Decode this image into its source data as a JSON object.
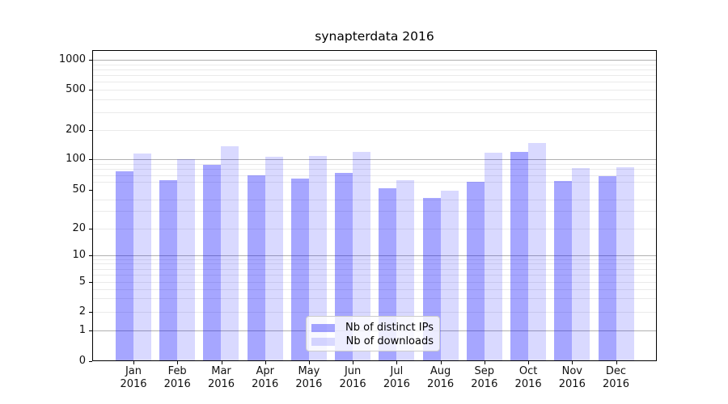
{
  "figure": {
    "background": "#ffffff",
    "plot_background": "#ffffff",
    "spine_color": "#000000",
    "major_grid_color": "#b0b0b0",
    "minor_grid_color": "#eaeaea"
  },
  "chart_data": {
    "type": "bar",
    "title": "synapterdata 2016",
    "categories": [
      "Jan 2016",
      "Feb 2016",
      "Mar 2016",
      "Apr 2016",
      "May 2016",
      "Jun 2016",
      "Jul 2016",
      "Aug 2016",
      "Sep 2016",
      "Oct 2016",
      "Nov 2016",
      "Dec 2016"
    ],
    "series": [
      {
        "name": "Nb of distinct IPs",
        "color_hex": "#a6a6ff",
        "color_rgba": "rgba(0,0,255,0.35)",
        "values": [
          76,
          62,
          88,
          70,
          65,
          74,
          52,
          41,
          60,
          120,
          61,
          68
        ]
      },
      {
        "name": "Nb of downloads",
        "color_hex": "#d9d9ff",
        "color_rgba": "rgba(0,0,255,0.15)",
        "values": [
          114,
          101,
          135,
          107,
          108,
          120,
          62,
          49,
          117,
          148,
          82,
          84
        ]
      }
    ],
    "xlabel": "",
    "ylabel": "",
    "yscale": "symlog",
    "y_tick_labels": [
      "0",
      "1",
      "2",
      "5",
      "10",
      "20",
      "50",
      "100",
      "200",
      "500",
      "1000"
    ],
    "y_ticks": [
      0,
      1,
      2,
      5,
      10,
      20,
      50,
      100,
      200,
      500,
      1000
    ],
    "y_major_gridlines": [
      1,
      10,
      100,
      1000
    ],
    "y_minor_gridlines": [
      2,
      3,
      4,
      5,
      6,
      7,
      8,
      9,
      20,
      30,
      40,
      60,
      70,
      80,
      90,
      200,
      300,
      400,
      500,
      600,
      700,
      800,
      900
    ],
    "ylim": [
      0,
      1260
    ],
    "grid": true,
    "legend_position": "lower center"
  }
}
